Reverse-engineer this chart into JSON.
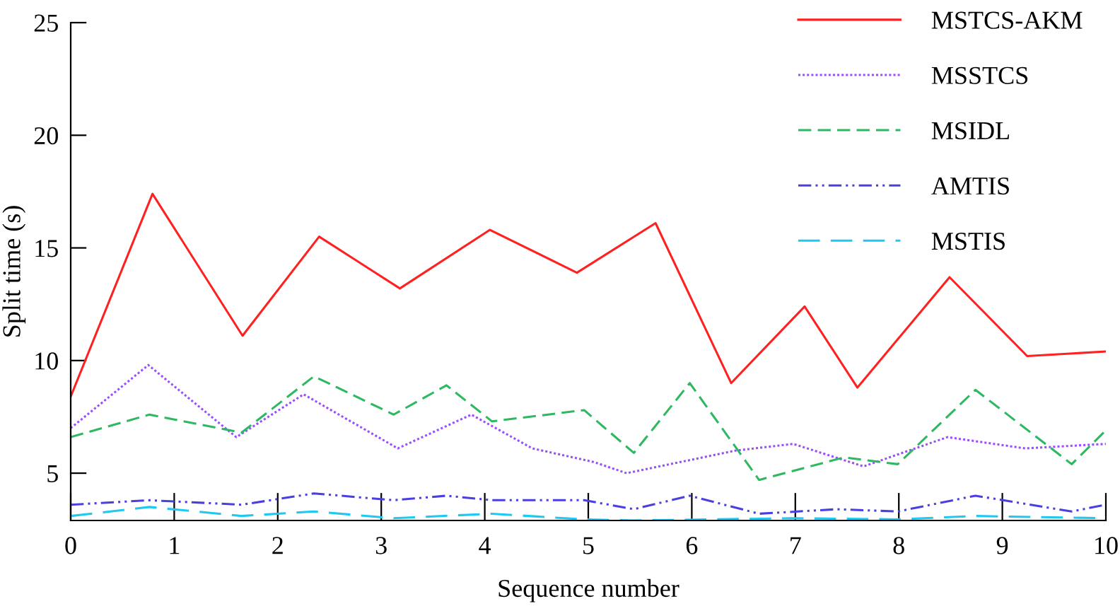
{
  "chart_data": {
    "type": "line",
    "xlabel": "Sequence number",
    "ylabel": "Split time (s)",
    "xlim": [
      0,
      10
    ],
    "xticks": [
      0,
      1,
      2,
      3,
      4,
      5,
      6,
      7,
      8,
      9,
      10
    ],
    "ylim": [
      2.9,
      25
    ],
    "yticks": [
      5,
      10,
      15,
      20,
      25
    ],
    "grid": false,
    "legend": "top right",
    "marker": "none",
    "series": [
      {
        "name": "MSTCS-AKM",
        "color": "#ff2020",
        "line_style": "solid",
        "x": [
          0,
          0.79,
          1.66,
          2.4,
          3.18,
          4.05,
          4.89,
          5.65,
          6.38,
          7.09,
          7.6,
          8.49,
          9.24,
          10
        ],
        "values": [
          8.4,
          17.4,
          11.1,
          15.5,
          13.2,
          15.8,
          13.9,
          16.1,
          9.0,
          12.4,
          8.8,
          13.7,
          10.2,
          10.4
        ]
      },
      {
        "name": "MSSTCS",
        "color": "#9b4dff",
        "line_style": "dotted",
        "x": [
          0,
          0.75,
          1.6,
          2.25,
          3.16,
          3.87,
          4.46,
          5.05,
          5.37,
          6.42,
          6.98,
          7.66,
          8.47,
          9.22,
          10
        ],
        "values": [
          7.0,
          9.8,
          6.6,
          8.5,
          6.1,
          7.6,
          6.1,
          5.5,
          5.0,
          6.0,
          6.3,
          5.3,
          6.6,
          6.1,
          6.3
        ]
      },
      {
        "name": "MSIDL",
        "color": "#2eb862",
        "line_style": "dashed",
        "x": [
          0,
          0.76,
          1.65,
          2.35,
          3.12,
          3.63,
          4.07,
          4.96,
          5.44,
          5.98,
          6.65,
          7.47,
          7.99,
          8.74,
          9.67,
          10
        ],
        "values": [
          6.6,
          7.6,
          6.8,
          9.3,
          7.6,
          8.9,
          7.3,
          7.8,
          5.9,
          9.0,
          4.7,
          5.7,
          5.4,
          8.7,
          5.4,
          6.9
        ]
      },
      {
        "name": "AMTIS",
        "color": "#4a3fe0",
        "line_style": "dashdotdot",
        "x": [
          0,
          0.76,
          1.65,
          2.35,
          3.12,
          3.63,
          4.07,
          4.96,
          5.44,
          5.98,
          6.65,
          7.4,
          7.99,
          8.74,
          9.67,
          10
        ],
        "values": [
          3.6,
          3.8,
          3.6,
          4.1,
          3.8,
          4.0,
          3.8,
          3.8,
          3.4,
          4.0,
          3.2,
          3.4,
          3.3,
          4.0,
          3.3,
          3.6
        ]
      },
      {
        "name": "MSTIS",
        "color": "#1ec8f0",
        "line_style": "longdash",
        "x": [
          0,
          0.76,
          1.65,
          2.35,
          3.12,
          4.07,
          4.96,
          5.44,
          6.2,
          7.0,
          7.99,
          8.74,
          10
        ],
        "values": [
          3.1,
          3.5,
          3.1,
          3.3,
          3.0,
          3.2,
          2.95,
          2.9,
          2.95,
          3.0,
          2.95,
          3.1,
          3.0
        ]
      }
    ]
  }
}
